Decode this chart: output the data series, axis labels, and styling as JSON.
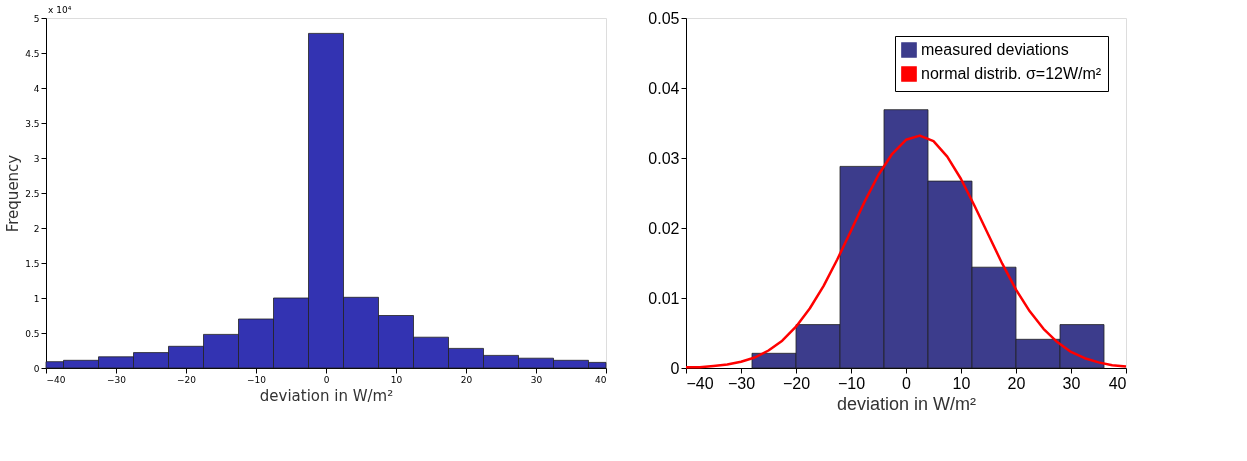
{
  "chart_data": [
    {
      "type": "histogram",
      "xlabel": "deviation in W/m²",
      "ylabel": "Frequency",
      "annotations": [
        "x 10⁴"
      ],
      "bins": [
        -40,
        -37.5,
        -32.5,
        -27.5,
        -22.5,
        -17.5,
        -12.5,
        -7.5,
        -2.5,
        2.5,
        7.5,
        12.5,
        17.5,
        22.5,
        27.5,
        32.5,
        37.5,
        40
      ],
      "values": [
        0.09,
        0.11,
        0.16,
        0.22,
        0.31,
        0.48,
        0.7,
        1.0,
        4.78,
        1.01,
        0.75,
        0.44,
        0.28,
        0.18,
        0.14,
        0.11,
        0.08
      ],
      "color": "#3333b2",
      "xlim": [
        -40,
        40
      ],
      "xticks": [
        -40,
        -30,
        -20,
        -10,
        0,
        10,
        20,
        30,
        40
      ],
      "ylim": [
        0,
        5
      ],
      "yticks": [
        0,
        0.5,
        1,
        1.5,
        2,
        2.5,
        3,
        3.5,
        4,
        4.5,
        5
      ],
      "grid": false,
      "legend": false
    },
    {
      "type": "histogram",
      "xlabel": "deviation in W/m²",
      "bins": [
        -28,
        -20,
        -12,
        -4,
        4,
        12,
        20,
        28,
        36
      ],
      "series": [
        {
          "name": "measured deviations",
          "color": "#3c3c8c",
          "values": [
            0.0021,
            0.0062,
            0.0288,
            0.0369,
            0.0267,
            0.0144,
            0.0041,
            0.0062
          ]
        },
        {
          "name": "normal distrib. σ=12W/m²",
          "type": "line",
          "color": "#ff0000",
          "x": [
            -40,
            -37.5,
            -35,
            -32.5,
            -30,
            -27.5,
            -25,
            -22.5,
            -20,
            -17.5,
            -15,
            -12.5,
            -10,
            -7.5,
            -5,
            -2.5,
            0,
            2.5,
            5,
            7.5,
            10,
            12.5,
            15,
            17.5,
            20,
            22.5,
            25,
            27.5,
            30,
            32.5,
            35,
            37.5,
            40
          ],
          "values": [
            0.0001,
            0.0001,
            0.0003,
            0.0005,
            0.0009,
            0.0015,
            0.0025,
            0.0039,
            0.0059,
            0.0085,
            0.0117,
            0.0155,
            0.0196,
            0.0238,
            0.0276,
            0.0306,
            0.0326,
            0.0332,
            0.0324,
            0.0302,
            0.027,
            0.0231,
            0.019,
            0.0149,
            0.0112,
            0.0081,
            0.0056,
            0.0037,
            0.0023,
            0.0014,
            0.0008,
            0.0004,
            0.0002
          ]
        }
      ],
      "xlim": [
        -40,
        40
      ],
      "xticks": [
        -40,
        -30,
        -20,
        -10,
        0,
        10,
        20,
        30,
        40
      ],
      "ylim": [
        0,
        0.05
      ],
      "yticks": [
        0,
        0.01,
        0.02,
        0.03,
        0.04,
        0.05
      ],
      "grid": false,
      "legend": "top right"
    }
  ]
}
